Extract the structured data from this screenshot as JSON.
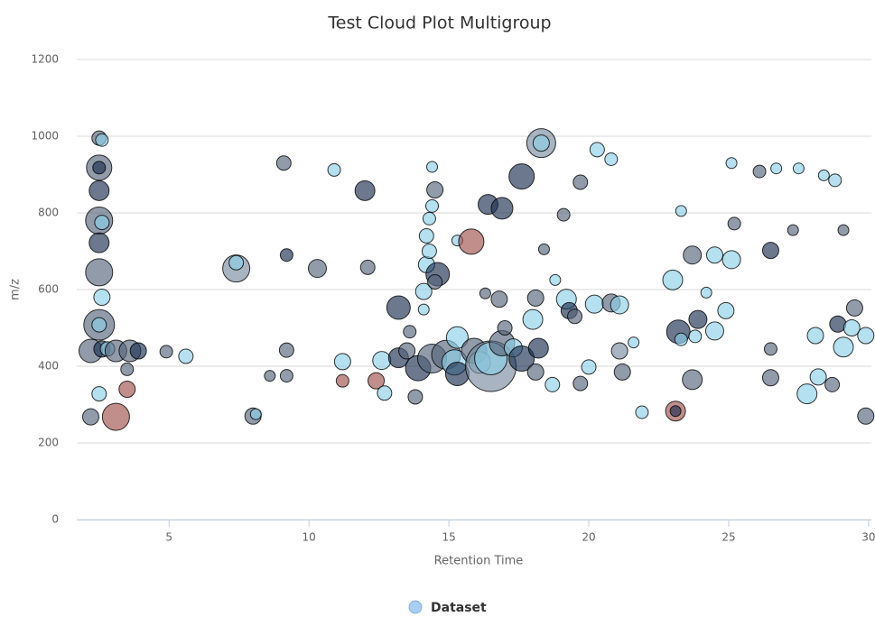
{
  "chart_data": {
    "type": "bubble",
    "title": "Test Cloud Plot Multigroup",
    "x_label": "Retention Time",
    "y_label": "m/z",
    "xlim": [
      1.7,
      30.1
    ],
    "xticks": [
      5,
      10,
      15,
      20,
      25,
      30
    ],
    "ylim": [
      0,
      1200
    ],
    "yticks": [
      0,
      200,
      400,
      600,
      800,
      1000,
      1200
    ],
    "grid": true,
    "legend": "bottom",
    "series": [
      {
        "name": "Dataset",
        "color": "#a8cdf0",
        "x": [
          2.5,
          2.6,
          2.5,
          2.5,
          2.5,
          2.5,
          2.6,
          2.5,
          2.5,
          2.6,
          2.5,
          2.5,
          2.2,
          2.6,
          2.8,
          3.1,
          3.6,
          3.9,
          3.5,
          2.5,
          3.5,
          2.2,
          3.1,
          4.9,
          5.6,
          7.4,
          7.4,
          8.0,
          8.1,
          8.6,
          9.1,
          9.2,
          9.2,
          9.2,
          10.3,
          10.9,
          11.2,
          11.2,
          12.0,
          12.1,
          12.4,
          12.6,
          12.7,
          13.2,
          13.2,
          13.5,
          13.6,
          13.8,
          13.9,
          14.1,
          14.1,
          14.2,
          14.2,
          14.3,
          14.3,
          14.4,
          14.5,
          14.4,
          14.6,
          14.5,
          14.4,
          14.9,
          15.2,
          15.3,
          15.3,
          15.3,
          15.8,
          15.9,
          16.1,
          16.5,
          16.5,
          16.4,
          16.9,
          16.8,
          16.3,
          16.9,
          17.3,
          17.0,
          17.6,
          17.6,
          18.3,
          18.3,
          18.4,
          18.1,
          18.0,
          18.2,
          18.1,
          18.7,
          18.8,
          19.2,
          19.3,
          19.5,
          19.1,
          19.7,
          19.7,
          20.0,
          20.3,
          20.2,
          20.8,
          20.8,
          21.1,
          21.1,
          21.2,
          21.6,
          21.9,
          23.0,
          23.3,
          23.2,
          23.3,
          23.1,
          23.1,
          23.7,
          23.7,
          23.8,
          23.9,
          24.2,
          24.5,
          24.5,
          24.9,
          25.1,
          25.1,
          25.2,
          26.1,
          26.5,
          26.5,
          26.5,
          26.7,
          27.3,
          27.5,
          27.8,
          28.1,
          28.2,
          28.4,
          28.7,
          28.8,
          28.9,
          29.1,
          29.1,
          29.4,
          29.5,
          29.9,
          29.9
        ],
        "values": [
          995,
          990,
          918,
          918,
          858,
          780,
          775,
          722,
          645,
          580,
          508,
          508,
          440,
          445,
          445,
          440,
          440,
          440,
          392,
          328,
          340,
          268,
          268,
          438,
          426,
          655,
          670,
          270,
          275,
          375,
          930,
          690,
          442,
          375,
          655,
          912,
          412,
          362,
          858,
          658,
          362,
          415,
          330,
          553,
          422,
          440,
          490,
          320,
          395,
          548,
          595,
          665,
          740,
          700,
          785,
          818,
          860,
          920,
          640,
          620,
          420,
          430,
          410,
          380,
          475,
          728,
          725,
          440,
          410,
          400,
          420,
          822,
          812,
          575,
          590,
          460,
          448,
          500,
          420,
          895,
          982,
          982,
          705,
          578,
          522,
          447,
          385,
          352,
          625,
          575,
          545,
          530,
          795,
          880,
          355,
          398,
          965,
          562,
          565,
          940,
          560,
          440,
          385,
          462,
          280,
          625,
          805,
          490,
          470,
          283,
          283,
          365,
          690,
          478,
          522,
          592,
          690,
          492,
          545,
          678,
          930,
          772,
          908,
          702,
          445,
          370,
          916,
          755,
          916,
          328,
          480,
          372,
          898,
          352,
          885,
          510,
          450,
          755,
          500,
          552,
          480,
          270
        ],
        "sizes": [
          8,
          7,
          14,
          7,
          11,
          15,
          8,
          11,
          15,
          9,
          17,
          8,
          13,
          9,
          8,
          12,
          12,
          9,
          7,
          8,
          9,
          9,
          15,
          7,
          8,
          15,
          8,
          9,
          6,
          6,
          8,
          7,
          8,
          7,
          10,
          7,
          9,
          7,
          11,
          8,
          9,
          10,
          8,
          13,
          11,
          9,
          7,
          8,
          14,
          6,
          9,
          9,
          8,
          8,
          7,
          7,
          9,
          6,
          13,
          8,
          16,
          16,
          14,
          13,
          12,
          6,
          14,
          14,
          12,
          28,
          18,
          11,
          12,
          9,
          6,
          14,
          10,
          8,
          14,
          14,
          16,
          9,
          6,
          9,
          11,
          11,
          9,
          8,
          6,
          11,
          9,
          8,
          7,
          8,
          8,
          8,
          8,
          10,
          10,
          7,
          10,
          9,
          9,
          6,
          7,
          11,
          6,
          13,
          7,
          11,
          6,
          11,
          10,
          7,
          10,
          6,
          9,
          10,
          9,
          10,
          6,
          7,
          7,
          9,
          7,
          9,
          6,
          6,
          6,
          11,
          9,
          9,
          6,
          8,
          7,
          9,
          11,
          6,
          9,
          9,
          9,
          9
        ],
        "colors": [
          "#56667d",
          "#8ed0e8",
          "#56667d",
          "#1c2f52",
          "#1c2f52",
          "#56667d",
          "#8ed0e8",
          "#1c2f52",
          "#56667d",
          "#8ed0e8",
          "#56667d",
          "#8ed0e8",
          "#56667d",
          "#1c2f52",
          "#8ed0e8",
          "#56667d",
          "#56667d",
          "#1c2f52",
          "#56667d",
          "#8ed0e8",
          "#a0524f",
          "#56667d",
          "#a0524f",
          "#56667d",
          "#8ed0e8",
          "#7a8ca0",
          "#8ed0e8",
          "#56667d",
          "#8ed0e8",
          "#56667d",
          "#56667d",
          "#1c2f52",
          "#56667d",
          "#56667d",
          "#56667d",
          "#8ed0e8",
          "#8ed0e8",
          "#a0524f",
          "#1c2f52",
          "#56667d",
          "#a0524f",
          "#8ed0e8",
          "#8ed0e8",
          "#1c2f52",
          "#1c2f52",
          "#56667d",
          "#56667d",
          "#56667d",
          "#1c2f52",
          "#8ed0e8",
          "#8ed0e8",
          "#8ed0e8",
          "#8ed0e8",
          "#8ed0e8",
          "#8ed0e8",
          "#8ed0e8",
          "#56667d",
          "#8ed0e8",
          "#1c2f52",
          "#56667d",
          "#56667d",
          "#56667d",
          "#8ed0e8",
          "#1c2f52",
          "#8ed0e8",
          "#8ed0e8",
          "#a0524f",
          "#56667d",
          "#8ed0e8",
          "#7a8ca0",
          "#8ed0e8",
          "#1c2f52",
          "#1c2f52",
          "#56667d",
          "#56667d",
          "#56667d",
          "#8ed0e8",
          "#56667d",
          "#1c2f52",
          "#1c2f52",
          "#7a8ca0",
          "#8ed0e8",
          "#56667d",
          "#56667d",
          "#8ed0e8",
          "#1c2f52",
          "#56667d",
          "#8ed0e8",
          "#8ed0e8",
          "#8ed0e8",
          "#1c2f52",
          "#56667d",
          "#56667d",
          "#56667d",
          "#56667d",
          "#8ed0e8",
          "#8ed0e8",
          "#8ed0e8",
          "#56667d",
          "#8ed0e8",
          "#8ed0e8",
          "#7a8ca0",
          "#56667d",
          "#8ed0e8",
          "#8ed0e8",
          "#8ed0e8",
          "#8ed0e8",
          "#1c2f52",
          "#8ed0e8",
          "#a0524f",
          "#1c2f52",
          "#56667d",
          "#56667d",
          "#8ed0e8",
          "#1c2f52",
          "#8ed0e8",
          "#8ed0e8",
          "#8ed0e8",
          "#8ed0e8",
          "#8ed0e8",
          "#8ed0e8",
          "#56667d",
          "#56667d",
          "#1c2f52",
          "#56667d",
          "#56667d",
          "#8ed0e8",
          "#56667d",
          "#8ed0e8",
          "#8ed0e8",
          "#8ed0e8",
          "#8ed0e8",
          "#8ed0e8",
          "#56667d",
          "#8ed0e8",
          "#1c2f52",
          "#8ed0e8",
          "#56667d",
          "#8ed0e8",
          "#56667d",
          "#8ed0e8",
          "#56667d"
        ]
      }
    ]
  }
}
